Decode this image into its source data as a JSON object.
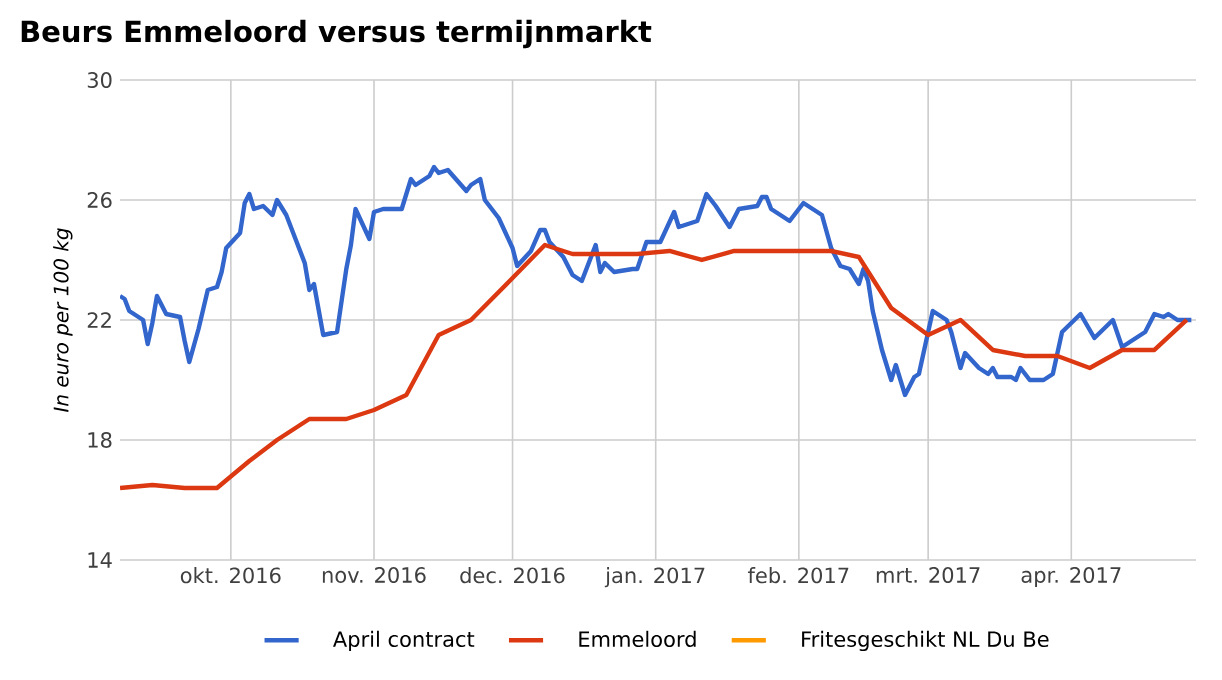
{
  "chart_data": {
    "type": "line",
    "title": "Beurs Emmeloord versus termijnmarkt",
    "ylabel": "In euro per 100 kg",
    "xlim": [
      "2016-09-07",
      "2017-04-28"
    ],
    "ylim": [
      14,
      30
    ],
    "yticks": [
      14,
      18,
      22,
      26,
      30
    ],
    "xticks": [
      {
        "value": "2016-10-01",
        "label": "okt. 2016"
      },
      {
        "value": "2016-11-01",
        "label": "nov. 2016"
      },
      {
        "value": "2016-12-01",
        "label": "dec. 2016"
      },
      {
        "value": "2017-01-01",
        "label": "jan. 2017"
      },
      {
        "value": "2017-02-01",
        "label": "feb. 2017"
      },
      {
        "value": "2017-03-01",
        "label": "mrt. 2017"
      },
      {
        "value": "2017-04-01",
        "label": "apr. 2017"
      }
    ],
    "grid": true,
    "legend": "bottom",
    "marker": "none",
    "line_style": "solid",
    "series": [
      {
        "name": "April contract",
        "color": "#3366cc",
        "x": [
          "2016-09-07",
          "2016-09-08",
          "2016-09-09",
          "2016-09-12",
          "2016-09-13",
          "2016-09-14",
          "2016-09-15",
          "2016-09-17",
          "2016-09-20",
          "2016-09-21",
          "2016-09-22",
          "2016-09-24",
          "2016-09-26",
          "2016-09-28",
          "2016-09-29",
          "2016-09-30",
          "2016-10-03",
          "2016-10-04",
          "2016-10-05",
          "2016-10-06",
          "2016-10-08",
          "2016-10-10",
          "2016-10-11",
          "2016-10-13",
          "2016-10-15",
          "2016-10-17",
          "2016-10-18",
          "2016-10-19",
          "2016-10-21",
          "2016-10-24",
          "2016-10-26",
          "2016-10-27",
          "2016-10-28",
          "2016-10-31",
          "2016-11-01",
          "2016-11-03",
          "2016-11-07",
          "2016-11-09",
          "2016-11-10",
          "2016-11-13",
          "2016-11-14",
          "2016-11-15",
          "2016-11-17",
          "2016-11-21",
          "2016-11-22",
          "2016-11-24",
          "2016-11-25",
          "2016-11-28",
          "2016-12-01",
          "2016-12-02",
          "2016-12-05",
          "2016-12-07",
          "2016-12-08",
          "2016-12-09",
          "2016-12-12",
          "2016-12-14",
          "2016-12-16",
          "2016-12-19",
          "2016-12-20",
          "2016-12-21",
          "2016-12-23",
          "2016-12-27",
          "2016-12-28",
          "2016-12-30",
          "2017-01-02",
          "2017-01-05",
          "2017-01-06",
          "2017-01-10",
          "2017-01-12",
          "2017-01-14",
          "2017-01-17",
          "2017-01-19",
          "2017-01-23",
          "2017-01-24",
          "2017-01-25",
          "2017-01-26",
          "2017-01-30",
          "2017-02-02",
          "2017-02-04",
          "2017-02-06",
          "2017-02-08",
          "2017-02-10",
          "2017-02-12",
          "2017-02-14",
          "2017-02-15",
          "2017-02-16",
          "2017-02-17",
          "2017-02-19",
          "2017-02-21",
          "2017-02-22",
          "2017-02-24",
          "2017-02-26",
          "2017-02-27",
          "2017-03-01",
          "2017-03-02",
          "2017-03-05",
          "2017-03-06",
          "2017-03-08",
          "2017-03-09",
          "2017-03-12",
          "2017-03-14",
          "2017-03-15",
          "2017-03-16",
          "2017-03-19",
          "2017-03-20",
          "2017-03-21",
          "2017-03-23",
          "2017-03-26",
          "2017-03-28",
          "2017-03-30",
          "2017-04-01",
          "2017-04-03",
          "2017-04-06",
          "2017-04-10",
          "2017-04-12",
          "2017-04-14",
          "2017-04-17",
          "2017-04-19",
          "2017-04-21",
          "2017-04-22",
          "2017-04-24",
          "2017-04-27"
        ],
        "values": [
          22.8,
          22.7,
          22.3,
          22.0,
          21.2,
          21.9,
          22.8,
          22.2,
          22.1,
          21.3,
          20.6,
          21.7,
          23.0,
          23.1,
          23.6,
          24.4,
          24.9,
          25.9,
          26.2,
          25.7,
          25.8,
          25.5,
          26.0,
          25.5,
          24.7,
          23.9,
          23.0,
          23.2,
          21.5,
          21.6,
          23.7,
          24.5,
          25.7,
          24.7,
          25.6,
          25.7,
          25.7,
          26.7,
          26.5,
          26.8,
          27.1,
          26.9,
          27.0,
          26.3,
          26.5,
          26.7,
          26.0,
          25.4,
          24.4,
          23.8,
          24.3,
          25.0,
          25.0,
          24.6,
          24.1,
          23.5,
          23.3,
          24.5,
          23.6,
          23.9,
          23.6,
          23.7,
          23.7,
          24.6,
          24.6,
          25.6,
          25.1,
          25.3,
          26.2,
          25.8,
          25.1,
          25.7,
          25.8,
          26.1,
          26.1,
          25.7,
          25.3,
          25.9,
          25.7,
          25.5,
          24.4,
          23.8,
          23.7,
          23.2,
          23.7,
          23.3,
          22.3,
          21.0,
          20.0,
          20.5,
          19.5,
          20.1,
          20.2,
          21.6,
          22.3,
          22.0,
          21.6,
          20.4,
          20.9,
          20.4,
          20.2,
          20.4,
          20.1,
          20.1,
          20.0,
          20.4,
          20.0,
          20.0,
          20.2,
          21.6,
          21.9,
          22.2,
          21.4,
          22.0,
          21.1,
          21.3,
          21.6,
          22.2,
          22.1,
          22.2,
          22.0,
          22.0
        ]
      },
      {
        "name": "Emmeloord",
        "color": "#dc3912",
        "x": [
          "2016-09-07",
          "2016-09-14",
          "2016-09-21",
          "2016-09-28",
          "2016-10-05",
          "2016-10-11",
          "2016-10-18",
          "2016-10-26",
          "2016-11-01",
          "2016-11-08",
          "2016-11-15",
          "2016-11-22",
          "2016-12-01",
          "2016-12-08",
          "2016-12-14",
          "2016-12-28",
          "2017-01-04",
          "2017-01-11",
          "2017-01-18",
          "2017-02-08",
          "2017-02-14",
          "2017-02-21",
          "2017-03-01",
          "2017-03-08",
          "2017-03-15",
          "2017-03-22",
          "2017-03-29",
          "2017-04-05",
          "2017-04-12",
          "2017-04-19",
          "2017-04-26"
        ],
        "values": [
          16.4,
          16.5,
          16.4,
          16.4,
          17.3,
          18.0,
          18.7,
          18.7,
          19.0,
          19.5,
          21.5,
          22.0,
          23.4,
          24.5,
          24.2,
          24.2,
          24.3,
          24.0,
          24.3,
          24.3,
          24.1,
          22.4,
          21.5,
          22.0,
          21.0,
          20.8,
          20.8,
          20.4,
          21.0,
          21.0,
          22.0
        ]
      },
      {
        "name": "Fritesgeschikt NL Du Be",
        "color": "#ff9900"
      }
    ]
  }
}
